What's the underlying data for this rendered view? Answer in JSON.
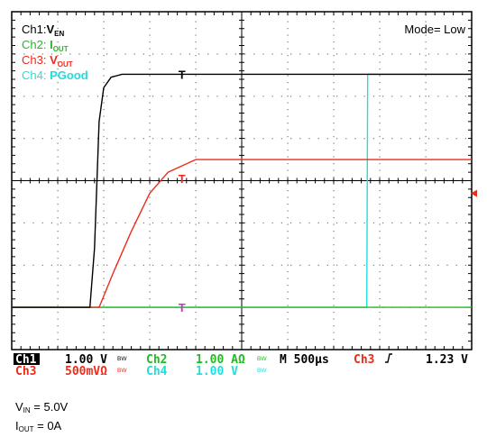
{
  "chart_data": {
    "type": "line",
    "time_unit": "µs",
    "x_range": [
      0,
      5000
    ],
    "y_range_div": [
      -4,
      4
    ],
    "timebase": "M 500µs",
    "trigger": {
      "source": "Ch3",
      "slope": "rising",
      "level": "1.23 V"
    },
    "mode": "Mode= Low",
    "legend": [
      {
        "id": "ch1",
        "label": "Ch1:",
        "main": "V",
        "sub": "EN",
        "color": "#000000"
      },
      {
        "id": "ch2",
        "label": "Ch2: ",
        "main": "I",
        "sub": "OUT",
        "color": "#22bb22"
      },
      {
        "id": "ch3",
        "label": "Ch3: ",
        "main": "V",
        "sub": "OUT",
        "color": "#ee2a1a"
      },
      {
        "id": "ch4",
        "label": "Ch4: ",
        "main": "PGood",
        "sub": "",
        "color": "#22dddd"
      }
    ],
    "series": [
      {
        "id": "ch1",
        "color": "#000000",
        "marker": "T",
        "points": [
          [
            0,
            -3
          ],
          [
            850,
            -3
          ],
          [
            900,
            -1.6
          ],
          [
            950,
            1.4
          ],
          [
            1000,
            2.2
          ],
          [
            1080,
            2.45
          ],
          [
            1200,
            2.52
          ],
          [
            5000,
            2.52
          ]
        ]
      },
      {
        "id": "ch3",
        "color": "#ee2a1a",
        "marker": "T",
        "points": [
          [
            0,
            -3
          ],
          [
            950,
            -3
          ],
          [
            1100,
            -2.2
          ],
          [
            1300,
            -1.2
          ],
          [
            1500,
            -0.3
          ],
          [
            1700,
            0.2
          ],
          [
            1850,
            0.35
          ],
          [
            2000,
            0.5
          ],
          [
            5000,
            0.5
          ]
        ]
      },
      {
        "id": "ch2",
        "color": "#22bb22",
        "marker": "T",
        "points": [
          [
            0,
            -3
          ],
          [
            5000,
            -3
          ]
        ]
      },
      {
        "id": "ch4",
        "color": "#22dddd",
        "marker": "",
        "points": [
          [
            0,
            -3
          ],
          [
            3860,
            -3
          ],
          [
            3870,
            2.52
          ],
          [
            5000,
            2.52
          ]
        ]
      }
    ],
    "scales": [
      {
        "ch": "Ch1",
        "value": "1.00 V",
        "bw": "BW",
        "color": "#000000",
        "boxed": true
      },
      {
        "ch": "Ch2",
        "value": "1.00 AΩ",
        "bw": "BW",
        "color": "#22bb22",
        "boxed": false
      },
      {
        "ch": "Ch3",
        "value": "500mVΩ",
        "bw": "BW",
        "color": "#ee2a1a",
        "boxed": false
      },
      {
        "ch": "Ch4",
        "value": "1.00 V",
        "bw": "BW",
        "color": "#22dddd",
        "boxed": false
      }
    ]
  },
  "notes": [
    {
      "main": "V",
      "sub": "IN",
      "rest": " = 5.0V"
    },
    {
      "main": "I",
      "sub": "OUT",
      "rest": " = 0A"
    }
  ]
}
